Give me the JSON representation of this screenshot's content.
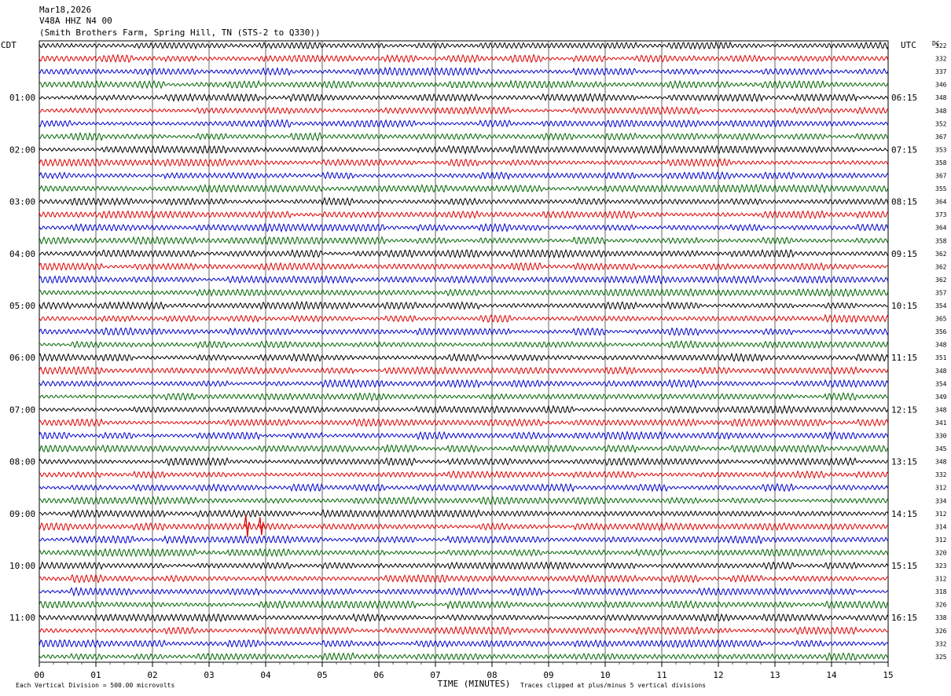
{
  "header": {
    "date": "Mar18,2026",
    "channel": "V48A HHZ N4 00",
    "station": "(Smith Brothers Farm, Spring Hill, TN (STS-2 to Q330))",
    "left_tz": "CDT",
    "right_tz": "UTC",
    "dc_label": "DC"
  },
  "chart_data": {
    "type": "line",
    "subtype": "helicorder",
    "xlabel": "TIME (MINUTES)",
    "x_ticks": [
      "00",
      "01",
      "02",
      "03",
      "04",
      "05",
      "06",
      "07",
      "08",
      "09",
      "10",
      "11",
      "12",
      "13",
      "14",
      "15"
    ],
    "xlim": [
      0,
      15
    ],
    "lines_per_hour": 4,
    "minutes_per_line": 15,
    "left_hour_labels": [
      "01:00",
      "02:00",
      "03:00",
      "04:00",
      "05:00",
      "06:00",
      "07:00",
      "08:00",
      "09:00",
      "10:00",
      "11:00"
    ],
    "right_hour_labels": [
      "06:15",
      "07:15",
      "08:15",
      "09:15",
      "10:15",
      "11:15",
      "12:15",
      "13:15",
      "14:15",
      "15:15",
      "16:15"
    ],
    "trace_colors": [
      "#000000",
      "#dd0000",
      "#0000cc",
      "#006600"
    ],
    "dc_offsets": [
      322,
      332,
      337,
      346,
      348,
      348,
      352,
      367,
      353,
      358,
      367,
      355,
      364,
      373,
      364,
      358,
      362,
      362,
      362,
      357,
      354,
      365,
      356,
      348,
      351,
      348,
      354,
      349,
      348,
      341,
      330,
      345,
      348,
      332,
      312,
      334,
      312,
      314,
      312,
      320,
      323,
      312,
      318,
      326,
      338,
      326,
      332,
      325
    ],
    "events": [
      {
        "line": 37,
        "minute": 3.65,
        "amplitude_divisions": 3.0,
        "color": "#dd0000"
      },
      {
        "line": 37,
        "minute": 3.9,
        "amplitude_divisions": 2.4,
        "color": "#dd0000"
      }
    ]
  },
  "footer": {
    "vertical_division": "Each Vertical Division =  500.00 microvolts",
    "clip_note": "Traces clipped at plus/minus 5 vertical divisions"
  }
}
